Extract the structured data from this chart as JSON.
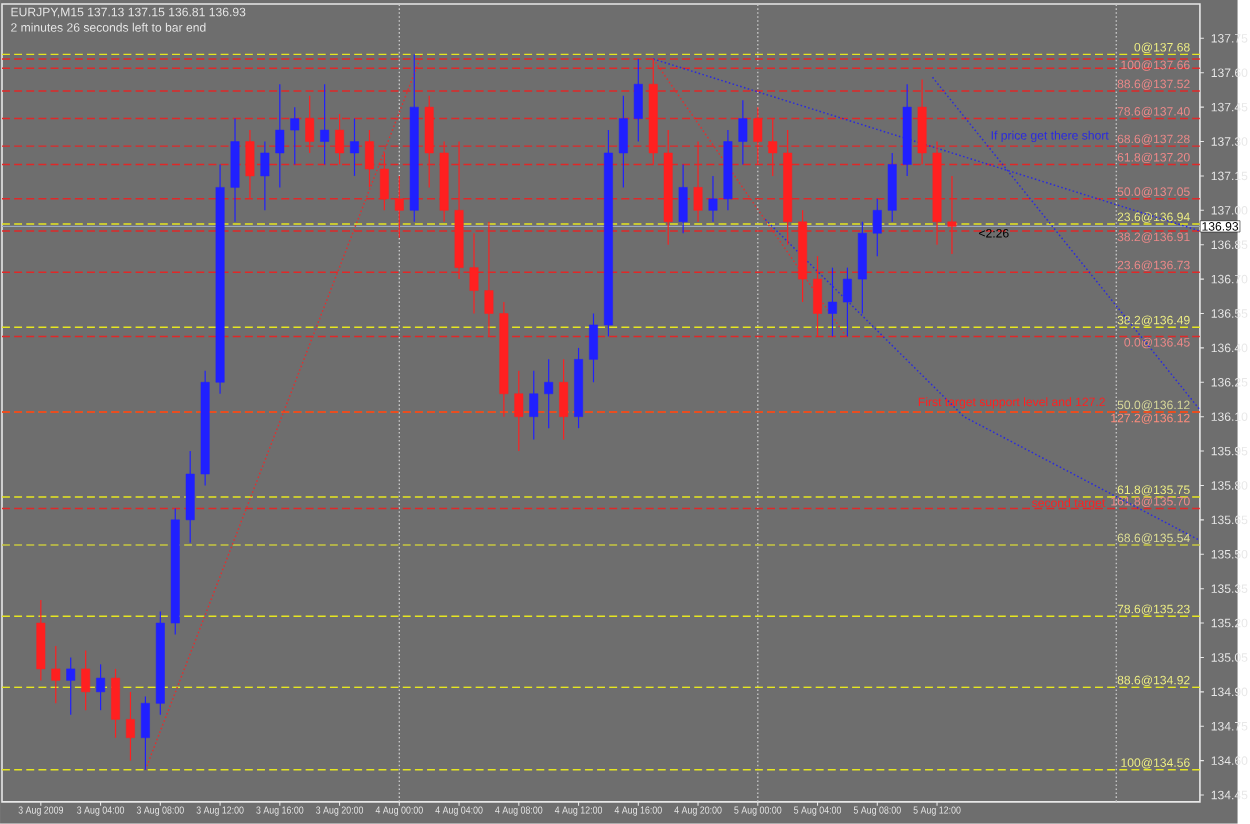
{
  "chart_data": {
    "type": "candlestick",
    "title": "EURJPY,M15  137.13 137.15 136.81 136.93",
    "subtitle": "2 minutes 26 seconds left to bar end",
    "x": [
      "2009-08-03T00:00",
      "2009-08-03T01:00",
      "2009-08-03T02:00",
      "2009-08-03T03:00",
      "2009-08-03T04:00",
      "2009-08-03T05:00",
      "2009-08-03T06:00",
      "2009-08-03T07:00",
      "2009-08-03T08:00",
      "2009-08-03T09:00",
      "2009-08-03T10:00",
      "2009-08-03T11:00",
      "2009-08-03T12:00",
      "2009-08-03T13:00",
      "2009-08-03T14:00",
      "2009-08-03T15:00",
      "2009-08-03T16:00",
      "2009-08-03T17:00",
      "2009-08-03T18:00",
      "2009-08-03T19:00",
      "2009-08-03T20:00",
      "2009-08-03T21:00",
      "2009-08-03T22:00",
      "2009-08-03T23:00",
      "2009-08-04T00:00",
      "2009-08-04T01:00",
      "2009-08-04T02:00",
      "2009-08-04T03:00",
      "2009-08-04T04:00",
      "2009-08-04T05:00",
      "2009-08-04T06:00",
      "2009-08-04T07:00",
      "2009-08-04T08:00",
      "2009-08-04T09:00",
      "2009-08-04T10:00",
      "2009-08-04T11:00",
      "2009-08-04T12:00",
      "2009-08-04T13:00",
      "2009-08-04T14:00",
      "2009-08-04T15:00",
      "2009-08-04T16:00",
      "2009-08-04T17:00",
      "2009-08-04T18:00",
      "2009-08-04T19:00",
      "2009-08-04T20:00",
      "2009-08-04T21:00",
      "2009-08-04T22:00",
      "2009-08-04T23:00",
      "2009-08-05T00:00",
      "2009-08-05T01:00",
      "2009-08-05T02:00",
      "2009-08-05T03:00",
      "2009-08-05T04:00",
      "2009-08-05T05:00",
      "2009-08-05T06:00",
      "2009-08-05T07:00",
      "2009-08-05T08:00",
      "2009-08-05T09:00",
      "2009-08-05T10:00",
      "2009-08-05T11:00",
      "2009-08-05T12:00",
      "2009-08-05T13:00"
    ],
    "ohlc": [
      [
        135.2,
        135.3,
        134.95,
        135.0
      ],
      [
        135.0,
        135.1,
        134.85,
        134.95
      ],
      [
        134.95,
        135.05,
        134.8,
        135.0
      ],
      [
        135.0,
        135.08,
        134.82,
        134.9
      ],
      [
        134.9,
        135.02,
        134.82,
        134.96
      ],
      [
        134.96,
        135.0,
        134.7,
        134.78
      ],
      [
        134.78,
        134.9,
        134.6,
        134.7
      ],
      [
        134.7,
        134.88,
        134.56,
        134.85
      ],
      [
        134.85,
        135.25,
        134.8,
        135.2
      ],
      [
        135.2,
        135.7,
        135.15,
        135.65
      ],
      [
        135.65,
        135.95,
        135.55,
        135.85
      ],
      [
        135.85,
        136.3,
        135.8,
        136.25
      ],
      [
        136.25,
        137.2,
        136.2,
        137.1
      ],
      [
        137.1,
        137.4,
        136.95,
        137.3
      ],
      [
        137.3,
        137.35,
        137.05,
        137.15
      ],
      [
        137.15,
        137.3,
        137.0,
        137.25
      ],
      [
        137.25,
        137.55,
        137.1,
        137.35
      ],
      [
        137.35,
        137.45,
        137.2,
        137.4
      ],
      [
        137.4,
        137.5,
        137.25,
        137.3
      ],
      [
        137.3,
        137.55,
        137.2,
        137.35
      ],
      [
        137.35,
        137.42,
        137.2,
        137.25
      ],
      [
        137.25,
        137.4,
        137.15,
        137.3
      ],
      [
        137.3,
        137.35,
        137.1,
        137.18
      ],
      [
        137.18,
        137.25,
        137.0,
        137.05
      ],
      [
        137.05,
        137.15,
        136.88,
        137.0
      ],
      [
        137.0,
        137.68,
        136.95,
        137.45
      ],
      [
        137.45,
        137.5,
        137.1,
        137.25
      ],
      [
        137.25,
        137.3,
        136.95,
        137.0
      ],
      [
        137.0,
        137.3,
        136.7,
        136.75
      ],
      [
        136.75,
        136.9,
        136.55,
        136.65
      ],
      [
        136.65,
        136.95,
        136.45,
        136.55
      ],
      [
        136.55,
        136.6,
        136.1,
        136.2
      ],
      [
        136.2,
        136.3,
        135.95,
        136.1
      ],
      [
        136.1,
        136.3,
        136.0,
        136.2
      ],
      [
        136.2,
        136.35,
        136.05,
        136.25
      ],
      [
        136.25,
        136.35,
        136.0,
        136.1
      ],
      [
        136.1,
        136.4,
        136.05,
        136.35
      ],
      [
        136.35,
        136.55,
        136.25,
        136.5
      ],
      [
        136.5,
        137.35,
        136.45,
        137.25
      ],
      [
        137.25,
        137.5,
        137.1,
        137.4
      ],
      [
        137.4,
        137.66,
        137.3,
        137.55
      ],
      [
        137.55,
        137.66,
        137.2,
        137.25
      ],
      [
        137.25,
        137.35,
        136.85,
        136.95
      ],
      [
        136.95,
        137.2,
        136.9,
        137.1
      ],
      [
        137.1,
        137.3,
        136.95,
        137.0
      ],
      [
        137.0,
        137.15,
        136.95,
        137.05
      ],
      [
        137.05,
        137.35,
        137.0,
        137.3
      ],
      [
        137.3,
        137.48,
        137.2,
        137.4
      ],
      [
        137.4,
        137.45,
        137.2,
        137.3
      ],
      [
        137.3,
        137.4,
        137.15,
        137.25
      ],
      [
        137.25,
        137.35,
        136.85,
        136.95
      ],
      [
        136.95,
        137.0,
        136.6,
        136.7
      ],
      [
        136.7,
        136.8,
        136.45,
        136.55
      ],
      [
        136.55,
        136.75,
        136.45,
        136.6
      ],
      [
        136.6,
        136.75,
        136.45,
        136.7
      ],
      [
        136.7,
        136.95,
        136.55,
        136.9
      ],
      [
        136.9,
        137.05,
        136.8,
        137.0
      ],
      [
        137.0,
        137.25,
        136.95,
        137.2
      ],
      [
        137.2,
        137.55,
        137.15,
        137.45
      ],
      [
        137.45,
        137.57,
        137.2,
        137.25
      ],
      [
        137.25,
        137.3,
        136.85,
        136.95
      ],
      [
        136.95,
        137.15,
        136.81,
        136.93
      ]
    ],
    "colors": [
      "#ff2020",
      "#ff2020",
      "#2020ff",
      "#ff2020",
      "#2020ff",
      "#ff2020",
      "#ff2020",
      "#2020ff",
      "#2020ff",
      "#2020ff",
      "#2020ff",
      "#2020ff",
      "#2020ff",
      "#2020ff",
      "#ff2020",
      "#2020ff",
      "#2020ff",
      "#2020ff",
      "#ff2020",
      "#2020ff",
      "#ff2020",
      "#2020ff",
      "#ff2020",
      "#ff2020",
      "#ff2020",
      "#2020ff",
      "#ff2020",
      "#ff2020",
      "#ff2020",
      "#ff2020",
      "#ff2020",
      "#ff2020",
      "#ff2020",
      "#2020ff",
      "#2020ff",
      "#ff2020",
      "#2020ff",
      "#2020ff",
      "#2020ff",
      "#2020ff",
      "#2020ff",
      "#ff2020",
      "#ff2020",
      "#2020ff",
      "#ff2020",
      "#2020ff",
      "#2020ff",
      "#2020ff",
      "#ff2020",
      "#ff2020",
      "#ff2020",
      "#ff2020",
      "#ff2020",
      "#2020ff",
      "#2020ff",
      "#2020ff",
      "#2020ff",
      "#2020ff",
      "#2020ff",
      "#ff2020",
      "#ff2020",
      "#ff2020"
    ],
    "series": [
      {
        "type": "line",
        "color": "#e03030",
        "line_style": "dotted",
        "x": [
          "2009-08-03T07:00",
          "2009-08-04T01:30"
        ],
        "values": [
          134.56,
          137.68
        ]
      },
      {
        "type": "line",
        "color": "#e03030",
        "line_style": "dotted",
        "x": [
          "2009-08-04T17:00",
          "2009-08-05T05:55"
        ],
        "values": [
          137.66,
          136.45
        ]
      },
      {
        "type": "line",
        "color": "#2a2ae0",
        "line_style": "dotted",
        "x": [
          "2009-08-04T17:00",
          "2009-08-06T05:36"
        ],
        "values": [
          137.66,
          136.91
        ]
      },
      {
        "type": "line",
        "color": "#2a2ae0",
        "line_style": "dotted",
        "x": [
          "2009-08-05T11:42",
          "2009-08-06T05:36"
        ],
        "values": [
          137.58,
          136.13
        ]
      },
      {
        "type": "line",
        "color": "#2a2ae0",
        "line_style": "dotted",
        "x": [
          "2009-08-05T00:30",
          "2009-08-05T13:48",
          "2009-08-06T05:36"
        ],
        "values": [
          136.96,
          136.1,
          135.56
        ]
      }
    ],
    "xlim": [
      "2009-08-02T21:24",
      "2009-08-06T05:36"
    ],
    "ylim": [
      134.42,
      137.9
    ],
    "xticks": [
      {
        "value": "2009-08-03T00:00",
        "label": "3 Aug 2009"
      },
      {
        "value": "2009-08-03T04:00",
        "label": "3 Aug 04:00"
      },
      {
        "value": "2009-08-03T08:00",
        "label": "3 Aug 08:00"
      },
      {
        "value": "2009-08-03T12:00",
        "label": "3 Aug 12:00"
      },
      {
        "value": "2009-08-03T16:00",
        "label": "3 Aug 16:00"
      },
      {
        "value": "2009-08-03T20:00",
        "label": "3 Aug 20:00"
      },
      {
        "value": "2009-08-04T00:00",
        "label": "4 Aug 00:00"
      },
      {
        "value": "2009-08-04T04:00",
        "label": "4 Aug 04:00"
      },
      {
        "value": "2009-08-04T08:00",
        "label": "4 Aug 08:00"
      },
      {
        "value": "2009-08-04T12:00",
        "label": "4 Aug 12:00"
      },
      {
        "value": "2009-08-04T16:00",
        "label": "4 Aug 16:00"
      },
      {
        "value": "2009-08-04T20:00",
        "label": "4 Aug 20:00"
      },
      {
        "value": "2009-08-05T00:00",
        "label": "5 Aug 00:00"
      },
      {
        "value": "2009-08-05T04:00",
        "label": "5 Aug 04:00"
      },
      {
        "value": "2009-08-05T08:00",
        "label": "5 Aug 08:00"
      },
      {
        "value": "2009-08-05T12:00",
        "label": "5 Aug 12:00"
      }
    ],
    "yticks": [
      137.75,
      {
        "value": 137.6,
        "label": "137.60"
      },
      137.45,
      {
        "value": 137.3,
        "label": "137.30"
      },
      137.15,
      {
        "value": 137.0,
        "label": "137.00"
      },
      136.85,
      {
        "value": 136.7,
        "label": "136.70"
      },
      136.55,
      {
        "value": 136.4,
        "label": "136.40"
      },
      136.25,
      {
        "value": 136.1,
        "label": "136.10"
      },
      135.95,
      {
        "value": 135.8,
        "label": "135.80"
      },
      135.65,
      {
        "value": 135.5,
        "label": "135.50"
      },
      135.35,
      {
        "value": 135.2,
        "label": "135.20"
      },
      135.05,
      {
        "value": 134.9,
        "label": "134.90"
      },
      134.75,
      {
        "value": 134.6,
        "label": "134.60"
      },
      134.45
    ],
    "ref_lines": [
      {
        "axis": "x",
        "value": "2009-08-04T00:00",
        "color": "#c8c8c8",
        "line_style": "dotted"
      },
      {
        "axis": "x",
        "value": "2009-08-05T00:00",
        "color": "#c8c8c8",
        "line_style": "dotted"
      },
      {
        "axis": "x",
        "value": "2009-08-06T00:00",
        "color": "#c8c8c8",
        "line_style": "dotted"
      },
      {
        "axis": "y",
        "value": 136.93,
        "label": "136.93",
        "color": "#9aa8c0",
        "line_style": "solid"
      },
      {
        "axis": "y",
        "value": 137.68,
        "label": "0@137.68",
        "color": "#e6e620",
        "line_style": "dashed"
      },
      {
        "axis": "y",
        "value": 136.94,
        "label": "23.6@136.94",
        "color": "#e6e620",
        "line_style": "dashed"
      },
      {
        "axis": "y",
        "value": 136.49,
        "label": "38.2@136.49",
        "color": "#e6e620",
        "line_style": "dashed"
      },
      {
        "axis": "y",
        "value": 136.12,
        "label": "50.0@136.12",
        "color": "#b8b848",
        "line_style": "dashed"
      },
      {
        "axis": "y",
        "value": 135.75,
        "label": "61.8@135.75",
        "color": "#e6e620",
        "line_style": "dashed"
      },
      {
        "axis": "y",
        "value": 135.54,
        "label": "68.6@135.54",
        "color": "#c8c840",
        "line_style": "dashed"
      },
      {
        "axis": "y",
        "value": 135.23,
        "label": "78.6@135.23",
        "color": "#e6e620",
        "line_style": "dashed"
      },
      {
        "axis": "y",
        "value": 134.92,
        "label": "88.6@134.92",
        "color": "#e6e620",
        "line_style": "dashed"
      },
      {
        "axis": "y",
        "value": 134.56,
        "label": "100@134.56",
        "color": "#e6e620",
        "line_style": "dashed"
      },
      {
        "axis": "y",
        "value": 137.66,
        "label": "100@137.66",
        "color": "#e02828",
        "line_style": "dashed"
      },
      {
        "axis": "y",
        "value": 137.62,
        "color": "#e02828",
        "line_style": "dashed"
      },
      {
        "axis": "y",
        "value": 137.52,
        "label": "88.6@137.52",
        "color": "#e02828",
        "line_style": "dashed"
      },
      {
        "axis": "y",
        "value": 137.4,
        "label": "78.6@137.40",
        "color": "#e02828",
        "line_style": "dashed"
      },
      {
        "axis": "y",
        "value": 137.28,
        "label": "68.6@137.28",
        "color": "#e02828",
        "line_style": "dashed"
      },
      {
        "axis": "y",
        "value": 137.2,
        "label": "61.8@137.20",
        "color": "#e02828",
        "line_style": "dashed"
      },
      {
        "axis": "y",
        "value": 137.05,
        "label": "50.0@137.05",
        "color": "#e02828",
        "line_style": "dashed"
      },
      {
        "axis": "y",
        "value": 136.91,
        "label": "38.2@136.91",
        "color": "#e02828",
        "line_style": "dashed"
      },
      {
        "axis": "y",
        "value": 136.73,
        "label": "23.6@136.73",
        "color": "#e02828",
        "line_style": "dashed"
      },
      {
        "axis": "y",
        "value": 136.45,
        "label": "0.0@136.45",
        "color": "#e02828",
        "line_style": "dashed"
      },
      {
        "axis": "y",
        "value": 136.12,
        "label": "127.2@136.12",
        "color": "#ff3010",
        "line_style": "dashed"
      },
      {
        "axis": "y",
        "value": 135.7,
        "label": "161.8@135.70",
        "color": "#e02828",
        "line_style": "dashed"
      }
    ],
    "annotations": [
      "If price get there short",
      {
        "text": "First target support level and 127.2",
        "x": "2009-08-05T17:00",
        "y": 136.16
      },
      {
        "text": "second target",
        "x": "2009-08-05T20:48",
        "y": 135.72
      },
      {
        "text": "<2:26",
        "x": "2009-08-05T15:48",
        "y": 136.9
      }
    ],
    "grid": false
  }
}
